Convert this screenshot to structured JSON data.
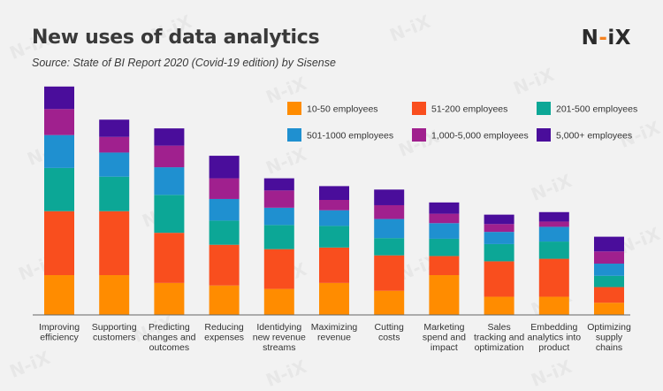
{
  "header": {
    "title": "New uses of data analytics",
    "subtitle": "Source: State of BI Report 2020 (Covid-19 edition) by Sisense",
    "logo_left": "N",
    "logo_dash": "-",
    "logo_right": "iX",
    "watermark_text": "N-iX"
  },
  "chart_data": {
    "type": "bar",
    "stacked": true,
    "title": "New uses of data analytics",
    "xlabel": "",
    "ylabel": "",
    "ylim": [
      0,
      100
    ],
    "grid": false,
    "legend_position": "top-right",
    "categories": [
      [
        "Improving",
        "efficiency"
      ],
      [
        "Supporting",
        "customers"
      ],
      [
        "Predicting",
        "changes and",
        "outcomes"
      ],
      [
        "Reducing",
        "expenses"
      ],
      [
        "Identidying",
        "new revenue",
        "streams"
      ],
      [
        "Maximizing",
        "revenue"
      ],
      [
        "Cutting",
        "costs"
      ],
      [
        "Marketing",
        "spend and",
        "impact"
      ],
      [
        "Sales",
        "tracking and",
        "optimization"
      ],
      [
        "Embedding",
        "analytics into",
        "product"
      ],
      [
        "Optimizing",
        "supply",
        "chains"
      ]
    ],
    "series": [
      {
        "name": "10-50 employees",
        "color": "#ff8c00",
        "values": [
          17.3,
          17.3,
          13.9,
          12.8,
          11.3,
          13.9,
          10.5,
          17.3,
          7.9,
          7.9,
          5.3
        ]
      },
      {
        "name": "51-200 employees",
        "color": "#f94e1e",
        "values": [
          27.8,
          27.8,
          21.8,
          17.7,
          17.3,
          15.4,
          15.4,
          8.3,
          15.4,
          16.5,
          6.8
        ]
      },
      {
        "name": "201-500 employees",
        "color": "#0ca796",
        "values": [
          18.8,
          15.0,
          16.5,
          10.5,
          10.5,
          9.4,
          7.5,
          7.5,
          7.5,
          7.5,
          4.9
        ]
      },
      {
        "name": "501-1000 employees",
        "color": "#1f90d0",
        "values": [
          14.3,
          10.5,
          12.0,
          9.4,
          7.5,
          6.8,
          8.3,
          6.8,
          5.3,
          6.4,
          5.3
        ]
      },
      {
        "name": "1,000-5,000 employees",
        "color": "#a0208e",
        "values": [
          11.3,
          6.8,
          9.4,
          9.0,
          7.5,
          4.5,
          6.0,
          4.1,
          3.4,
          2.3,
          5.3
        ]
      },
      {
        "name": "5,000+ employees",
        "color": "#4a0d9b",
        "values": [
          9.8,
          7.5,
          7.5,
          9.8,
          5.3,
          6.0,
          6.8,
          4.9,
          4.1,
          4.1,
          6.4
        ]
      }
    ]
  }
}
